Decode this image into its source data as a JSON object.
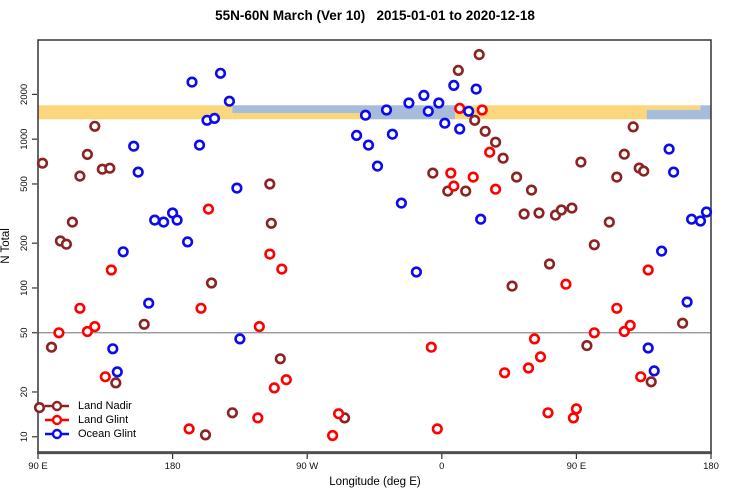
{
  "chart_data": {
    "type": "scatter",
    "title": "55N-60N March (Ver 10)   2015-01-01 to 2020-12-18",
    "xlabel": "Longitude (deg E)",
    "ylabel": "N Total",
    "x_axis": {
      "range": [
        90,
        540
      ],
      "ticks": [
        {
          "v": 90,
          "label": "90 E"
        },
        {
          "v": 180,
          "label": "180"
        },
        {
          "v": 270,
          "label": "90 W"
        },
        {
          "v": 360,
          "label": "0"
        },
        {
          "v": 450,
          "label": "90 E"
        },
        {
          "v": 540,
          "label": "180"
        }
      ],
      "note": "longitude axis wraps eastward: 90E to 180 to 90W to 0 to 90E to 180"
    },
    "y_axis": {
      "scale": "log",
      "range": [
        7.9,
        4640
      ],
      "ticks": [
        10,
        20,
        50,
        100,
        200,
        500,
        1000,
        2000
      ]
    },
    "reference_line_y": 50,
    "map_band": {
      "n_from": 1360,
      "n_to": 1690,
      "land_color": "#FAD77C",
      "ocean_color": "#A7BCD9",
      "segments": [
        {
          "from": 90,
          "to": 220,
          "type": "land"
        },
        {
          "from": 220,
          "to": 307,
          "type": "coast"
        },
        {
          "from": 307,
          "to": 369,
          "type": "ocean"
        },
        {
          "from": 369,
          "to": 497,
          "type": "land"
        },
        {
          "from": 497,
          "to": 533,
          "type": "coast2"
        },
        {
          "from": 533,
          "to": 540,
          "type": "ocean"
        }
      ]
    },
    "series": [
      {
        "name": "Land Nadir",
        "color": "#8B2323",
        "points": [
          [
            128,
            1220
          ],
          [
            123,
            790
          ],
          [
            93,
            690
          ],
          [
            133,
            628
          ],
          [
            138,
            638
          ],
          [
            118,
            565
          ],
          [
            245,
            500
          ],
          [
            113,
            277
          ],
          [
            246,
            272
          ],
          [
            105,
            207
          ],
          [
            109,
            197
          ],
          [
            206,
            108
          ],
          [
            161,
            57
          ],
          [
            99,
            40
          ],
          [
            142,
            23
          ],
          [
            220,
            14.5
          ],
          [
            202,
            10.3
          ],
          [
            91,
            15.7
          ],
          [
            385,
            3700
          ],
          [
            371,
            2900
          ],
          [
            382,
            1340
          ],
          [
            389,
            1130
          ],
          [
            396,
            955
          ],
          [
            354,
            592
          ],
          [
            364,
            448
          ],
          [
            376,
            448
          ],
          [
            295,
            13.4
          ],
          [
            252,
            33.4
          ],
          [
            488,
            1210
          ],
          [
            401,
            745
          ],
          [
            482,
            793
          ],
          [
            453,
            701
          ],
          [
            477,
            556
          ],
          [
            492,
            639
          ],
          [
            495,
            610
          ],
          [
            410,
            556
          ],
          [
            420,
            455
          ],
          [
            415,
            314
          ],
          [
            425,
            319
          ],
          [
            436,
            309
          ],
          [
            440,
            334
          ],
          [
            447,
            344
          ],
          [
            472,
            277
          ],
          [
            462,
            195
          ],
          [
            432,
            145
          ],
          [
            407,
            103
          ],
          [
            457,
            41
          ],
          [
            521,
            58
          ],
          [
            500,
            23.4
          ]
        ]
      },
      {
        "name": "Land Glint",
        "color": "#FF0000",
        "points": [
          [
            204,
            339
          ],
          [
            139,
            132
          ],
          [
            118,
            73
          ],
          [
            199,
            73
          ],
          [
            123,
            51
          ],
          [
            128,
            55
          ],
          [
            104,
            50
          ],
          [
            135,
            25.3
          ],
          [
            237,
            13.4
          ],
          [
            191,
            11.3
          ],
          [
            248,
            21.3
          ],
          [
            238,
            55
          ],
          [
            372,
            1610
          ],
          [
            387,
            1570
          ],
          [
            392,
            818
          ],
          [
            366,
            592
          ],
          [
            381,
            556
          ],
          [
            368,
            484
          ],
          [
            396,
            461
          ],
          [
            245,
            169
          ],
          [
            253,
            134
          ],
          [
            353,
            40
          ],
          [
            256,
            24.2
          ],
          [
            291,
            14.3
          ],
          [
            287,
            10.2
          ],
          [
            357,
            11.3
          ],
          [
            498,
            132
          ],
          [
            443,
            106
          ],
          [
            477,
            73
          ],
          [
            462,
            50
          ],
          [
            482,
            51
          ],
          [
            486,
            56
          ],
          [
            422,
            45.5
          ],
          [
            426,
            34.4
          ],
          [
            418,
            29
          ],
          [
            402,
            26.9
          ],
          [
            493,
            25.3
          ],
          [
            431,
            14.5
          ],
          [
            450,
            15.4
          ],
          [
            448,
            13.4
          ]
        ]
      },
      {
        "name": "Ocean Glint",
        "color": "#0B0BEE",
        "points": [
          [
            193,
            2420
          ],
          [
            212,
            2770
          ],
          [
            218,
            1800
          ],
          [
            203,
            1340
          ],
          [
            208,
            1380
          ],
          [
            154,
            897
          ],
          [
            198,
            912
          ],
          [
            157,
            601
          ],
          [
            223,
            469
          ],
          [
            168,
            286
          ],
          [
            174,
            277
          ],
          [
            180,
            319
          ],
          [
            183,
            286
          ],
          [
            190,
            204
          ],
          [
            147,
            175
          ],
          [
            164,
            79
          ],
          [
            225,
            45.5
          ],
          [
            140,
            39
          ],
          [
            143,
            27.3
          ],
          [
            368,
            2300
          ],
          [
            383,
            2170
          ],
          [
            348,
            1970
          ],
          [
            338,
            1750
          ],
          [
            358,
            1750
          ],
          [
            323,
            1570
          ],
          [
            351,
            1540
          ],
          [
            309,
            1450
          ],
          [
            378,
            1540
          ],
          [
            362,
            1280
          ],
          [
            372,
            1170
          ],
          [
            303,
            1060
          ],
          [
            327,
            1080
          ],
          [
            311,
            912
          ],
          [
            317,
            659
          ],
          [
            333,
            372
          ],
          [
            386,
            290
          ],
          [
            343,
            128
          ],
          [
            512,
            857
          ],
          [
            515,
            601
          ],
          [
            527,
            290
          ],
          [
            533,
            282
          ],
          [
            537,
            324
          ],
          [
            507,
            177
          ],
          [
            524,
            80.5
          ],
          [
            498,
            39.5
          ],
          [
            502,
            27.7
          ]
        ]
      }
    ],
    "legend_position": "bottom-left"
  }
}
